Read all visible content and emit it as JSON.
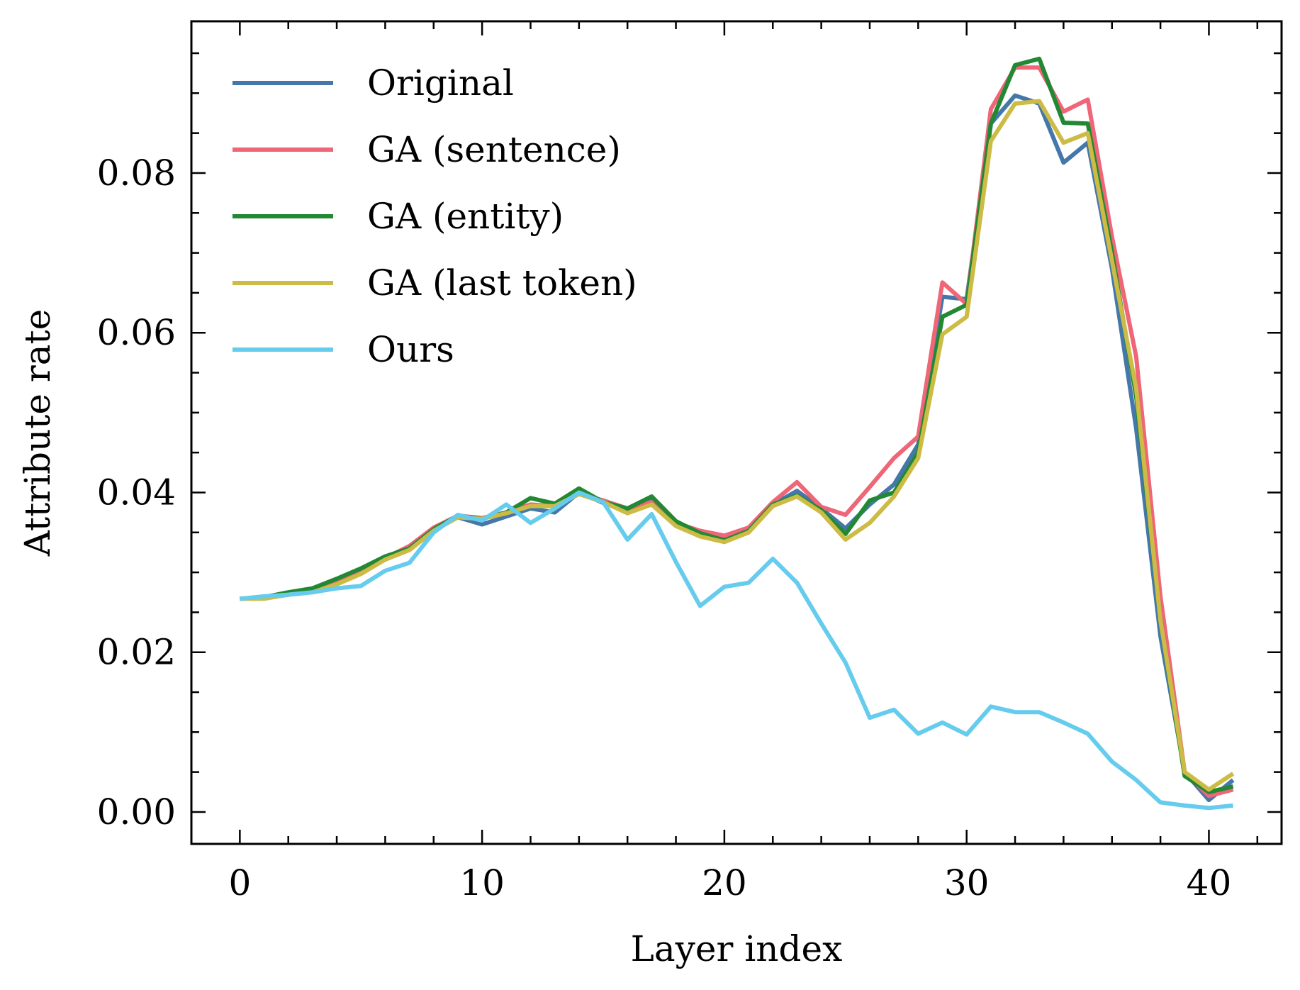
{
  "chart_data": {
    "type": "line",
    "title": "",
    "xlabel": "Layer index",
    "ylabel": "Attribute rate",
    "xlim": [
      -2,
      43
    ],
    "ylim": [
      -0.004,
      0.099
    ],
    "xticks": [
      0,
      10,
      20,
      30,
      40
    ],
    "xtick_labels": [
      "0",
      "10",
      "20",
      "30",
      "40"
    ],
    "yticks": [
      0.0,
      0.02,
      0.04,
      0.06,
      0.08
    ],
    "ytick_labels": [
      "0.00",
      "0.02",
      "0.04",
      "0.06",
      "0.08"
    ],
    "legend_position": "top-left",
    "grid": false,
    "x": [
      0,
      1,
      2,
      3,
      4,
      5,
      6,
      7,
      8,
      9,
      10,
      11,
      12,
      13,
      14,
      15,
      16,
      17,
      18,
      19,
      20,
      21,
      22,
      23,
      24,
      25,
      26,
      27,
      28,
      29,
      30,
      31,
      32,
      33,
      34,
      35,
      36,
      37,
      38,
      39,
      40,
      41
    ],
    "series": [
      {
        "name": "Original",
        "color": "#4477aa",
        "values": [
          0.0267,
          0.0268,
          0.0272,
          0.0276,
          0.0288,
          0.03,
          0.0316,
          0.0329,
          0.0353,
          0.0369,
          0.036,
          0.037,
          0.038,
          0.0375,
          0.04,
          0.0387,
          0.0378,
          0.039,
          0.0362,
          0.035,
          0.0345,
          0.0353,
          0.0385,
          0.0402,
          0.038,
          0.0355,
          0.0385,
          0.041,
          0.046,
          0.0645,
          0.0642,
          0.0862,
          0.0897,
          0.0887,
          0.0813,
          0.0838,
          0.068,
          0.048,
          0.022,
          0.005,
          0.0015,
          0.004
        ]
      },
      {
        "name": "GA (sentence)",
        "color": "#ee6677",
        "values": [
          0.0267,
          0.0268,
          0.0273,
          0.0277,
          0.0289,
          0.0302,
          0.0318,
          0.0333,
          0.0356,
          0.0371,
          0.0368,
          0.0375,
          0.0385,
          0.0383,
          0.0398,
          0.039,
          0.038,
          0.0388,
          0.0362,
          0.0352,
          0.0346,
          0.0356,
          0.0388,
          0.0413,
          0.0382,
          0.0372,
          0.0407,
          0.0443,
          0.047,
          0.0663,
          0.0636,
          0.088,
          0.0932,
          0.0932,
          0.0877,
          0.0892,
          0.072,
          0.057,
          0.027,
          0.005,
          0.002,
          0.0028
        ]
      },
      {
        "name": "GA (entity)",
        "color": "#228833",
        "values": [
          0.0267,
          0.0269,
          0.0275,
          0.028,
          0.0292,
          0.0305,
          0.032,
          0.033,
          0.0354,
          0.0371,
          0.0367,
          0.0375,
          0.0393,
          0.0386,
          0.0405,
          0.0388,
          0.038,
          0.0395,
          0.0364,
          0.0349,
          0.034,
          0.0352,
          0.0385,
          0.0396,
          0.0378,
          0.0348,
          0.039,
          0.04,
          0.045,
          0.062,
          0.0635,
          0.0862,
          0.0935,
          0.0943,
          0.0863,
          0.0862,
          0.07,
          0.052,
          0.024,
          0.0045,
          0.0025,
          0.0032
        ]
      },
      {
        "name": "GA (last token)",
        "color": "#ccbb44",
        "values": [
          0.0267,
          0.0267,
          0.0272,
          0.0275,
          0.0285,
          0.0298,
          0.0316,
          0.0328,
          0.0352,
          0.0369,
          0.0367,
          0.0374,
          0.0383,
          0.0383,
          0.0398,
          0.0388,
          0.0374,
          0.0385,
          0.0358,
          0.0345,
          0.0338,
          0.035,
          0.0383,
          0.0395,
          0.0375,
          0.0341,
          0.0362,
          0.0395,
          0.0443,
          0.0598,
          0.062,
          0.084,
          0.0887,
          0.089,
          0.0838,
          0.085,
          0.069,
          0.053,
          0.024,
          0.005,
          0.0028,
          0.0048
        ]
      },
      {
        "name": "Ours",
        "color": "#66ccee",
        "values": [
          0.0267,
          0.027,
          0.0272,
          0.0275,
          0.028,
          0.0283,
          0.0302,
          0.0312,
          0.035,
          0.0372,
          0.0365,
          0.0385,
          0.0362,
          0.038,
          0.04,
          0.0388,
          0.0341,
          0.0373,
          0.0313,
          0.0258,
          0.0282,
          0.0287,
          0.0317,
          0.0287,
          0.0236,
          0.0187,
          0.0118,
          0.0128,
          0.0098,
          0.0112,
          0.0097,
          0.0132,
          0.0125,
          0.0125,
          0.0112,
          0.0098,
          0.0063,
          0.004,
          0.0012,
          0.0008,
          0.0005,
          0.0008
        ]
      }
    ]
  }
}
